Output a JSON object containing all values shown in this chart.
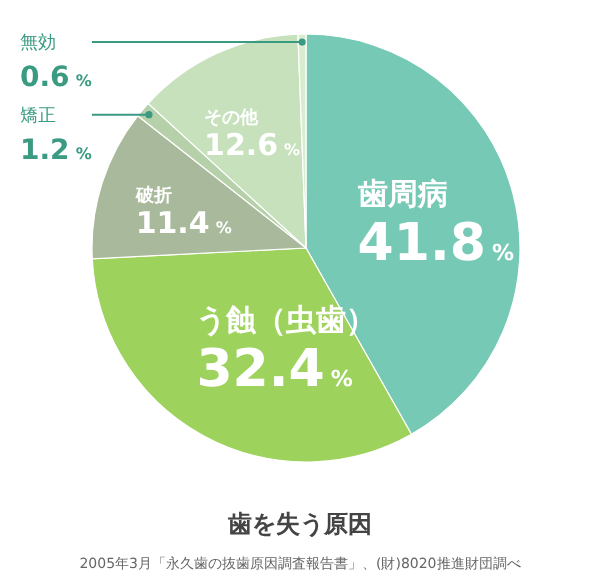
{
  "chart_data": {
    "type": "pie",
    "title": "歯を失う原因",
    "categories": [
      "歯周病",
      "う蝕（虫歯）",
      "破折",
      "矯正",
      "その他",
      "無効"
    ],
    "values": [
      41.8,
      32.4,
      11.4,
      1.2,
      12.6,
      0.6
    ],
    "colors": [
      "#76c9b5",
      "#9dd35c",
      "#a9b99b",
      "#b6d0aa",
      "#c6e1bc",
      "#d8ecce"
    ],
    "value_labels": [
      "41.8%",
      "32.4%",
      "11.4%",
      "1.2%",
      "12.6%",
      "0.6%"
    ],
    "annotations": [
      "2005年3月「永久歯の抜歯原因調査報告書」、(財)8020推進財団調べ"
    ]
  }
}
